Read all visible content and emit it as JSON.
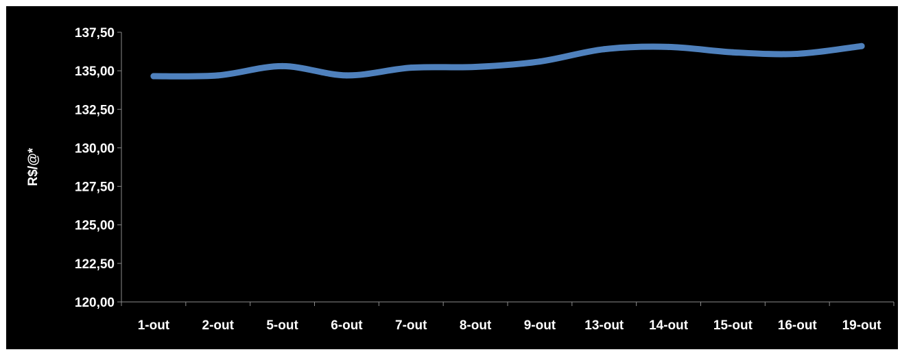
{
  "chart_data": {
    "type": "line",
    "title": "",
    "xlabel": "",
    "ylabel": "R$/@*",
    "categories": [
      "1-out",
      "2-out",
      "5-out",
      "6-out",
      "7-out",
      "8-out",
      "9-out",
      "13-out",
      "14-out",
      "15-out",
      "16-out",
      "19-out"
    ],
    "series": [
      {
        "values": [
          134.65,
          134.7,
          135.3,
          134.7,
          135.2,
          135.25,
          135.6,
          136.4,
          136.55,
          136.2,
          136.1,
          136.6
        ],
        "color": "#4f81bd"
      }
    ],
    "ylim": [
      120,
      137.5
    ],
    "yticks": [
      "120,00",
      "122,50",
      "125,00",
      "127,50",
      "130,00",
      "132,50",
      "135,00",
      "137,50"
    ],
    "grid": false,
    "smooth": true,
    "background": "#000000",
    "axis_color": "#8c8c8c",
    "text_color": "#ffffff"
  }
}
